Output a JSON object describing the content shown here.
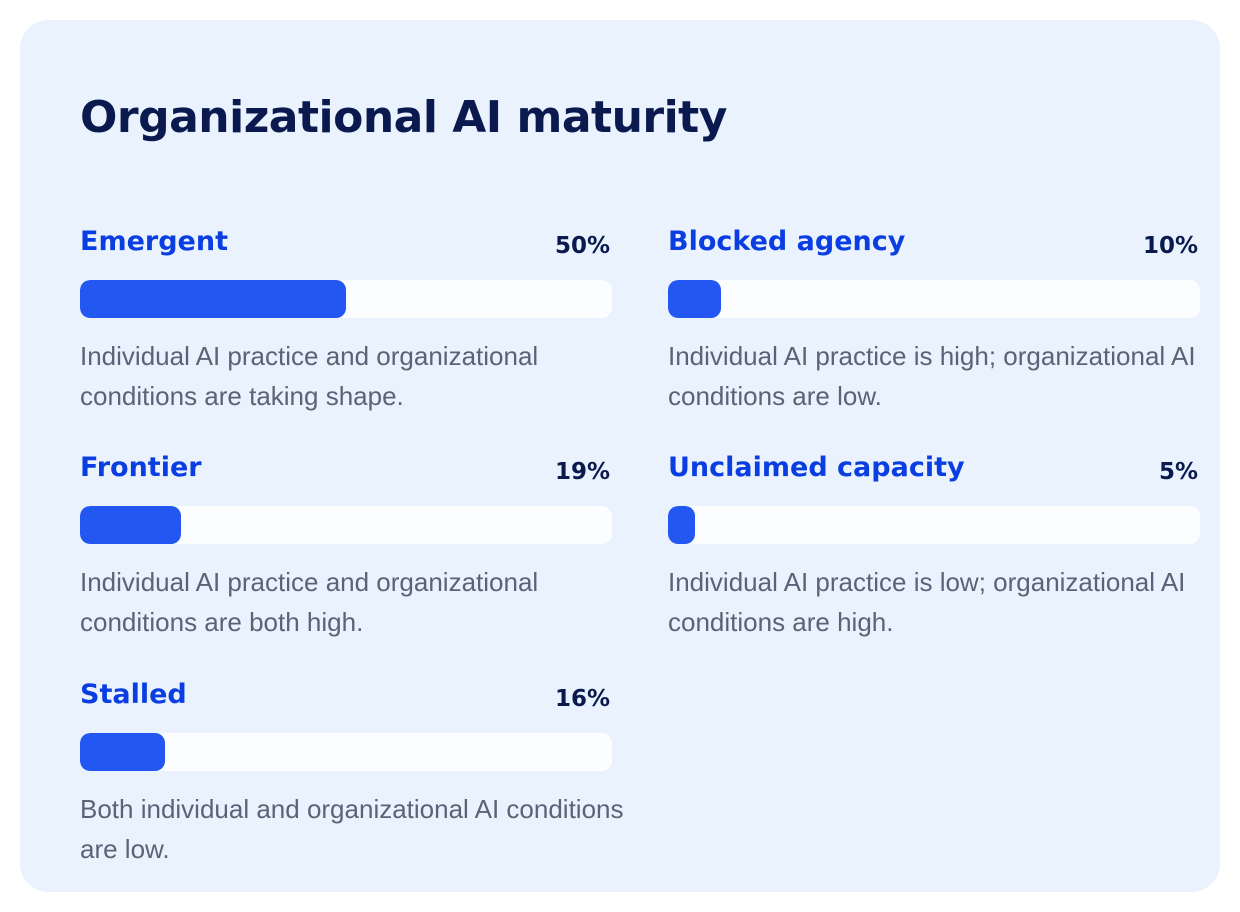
{
  "title": "Organizational AI maturity",
  "colors": {
    "card_background": "#eaf2fd",
    "title": "#0a1a4f",
    "label": "#0b3ee0",
    "bar_fill": "#2257f2",
    "bar_track": "#fcfdff",
    "description": "#5a6478"
  },
  "chart_data": {
    "type": "bar",
    "orientation": "horizontal",
    "title": "Organizational AI maturity",
    "unit": "%",
    "xlim": [
      0,
      100
    ],
    "categories": [
      "Emergent",
      "Frontier",
      "Stalled",
      "Blocked agency",
      "Unclaimed capacity"
    ],
    "values": [
      50,
      19,
      16,
      10,
      5
    ],
    "items": [
      {
        "label": "Emergent",
        "value": 50,
        "value_label": "50%",
        "description": "Individual AI practice and organizational conditions are taking shape."
      },
      {
        "label": "Frontier",
        "value": 19,
        "value_label": "19%",
        "description": "Individual AI practice and organizational conditions are both high."
      },
      {
        "label": "Stalled",
        "value": 16,
        "value_label": "16%",
        "description": "Both individual and organizational AI conditions are low."
      },
      {
        "label": "Blocked agency",
        "value": 10,
        "value_label": "10%",
        "description": "Individual AI practice is high; organizational AI conditions are low."
      },
      {
        "label": "Unclaimed capacity",
        "value": 5,
        "value_label": "5%",
        "description": "Individual AI practice is low; organizational AI conditions are high."
      }
    ]
  }
}
